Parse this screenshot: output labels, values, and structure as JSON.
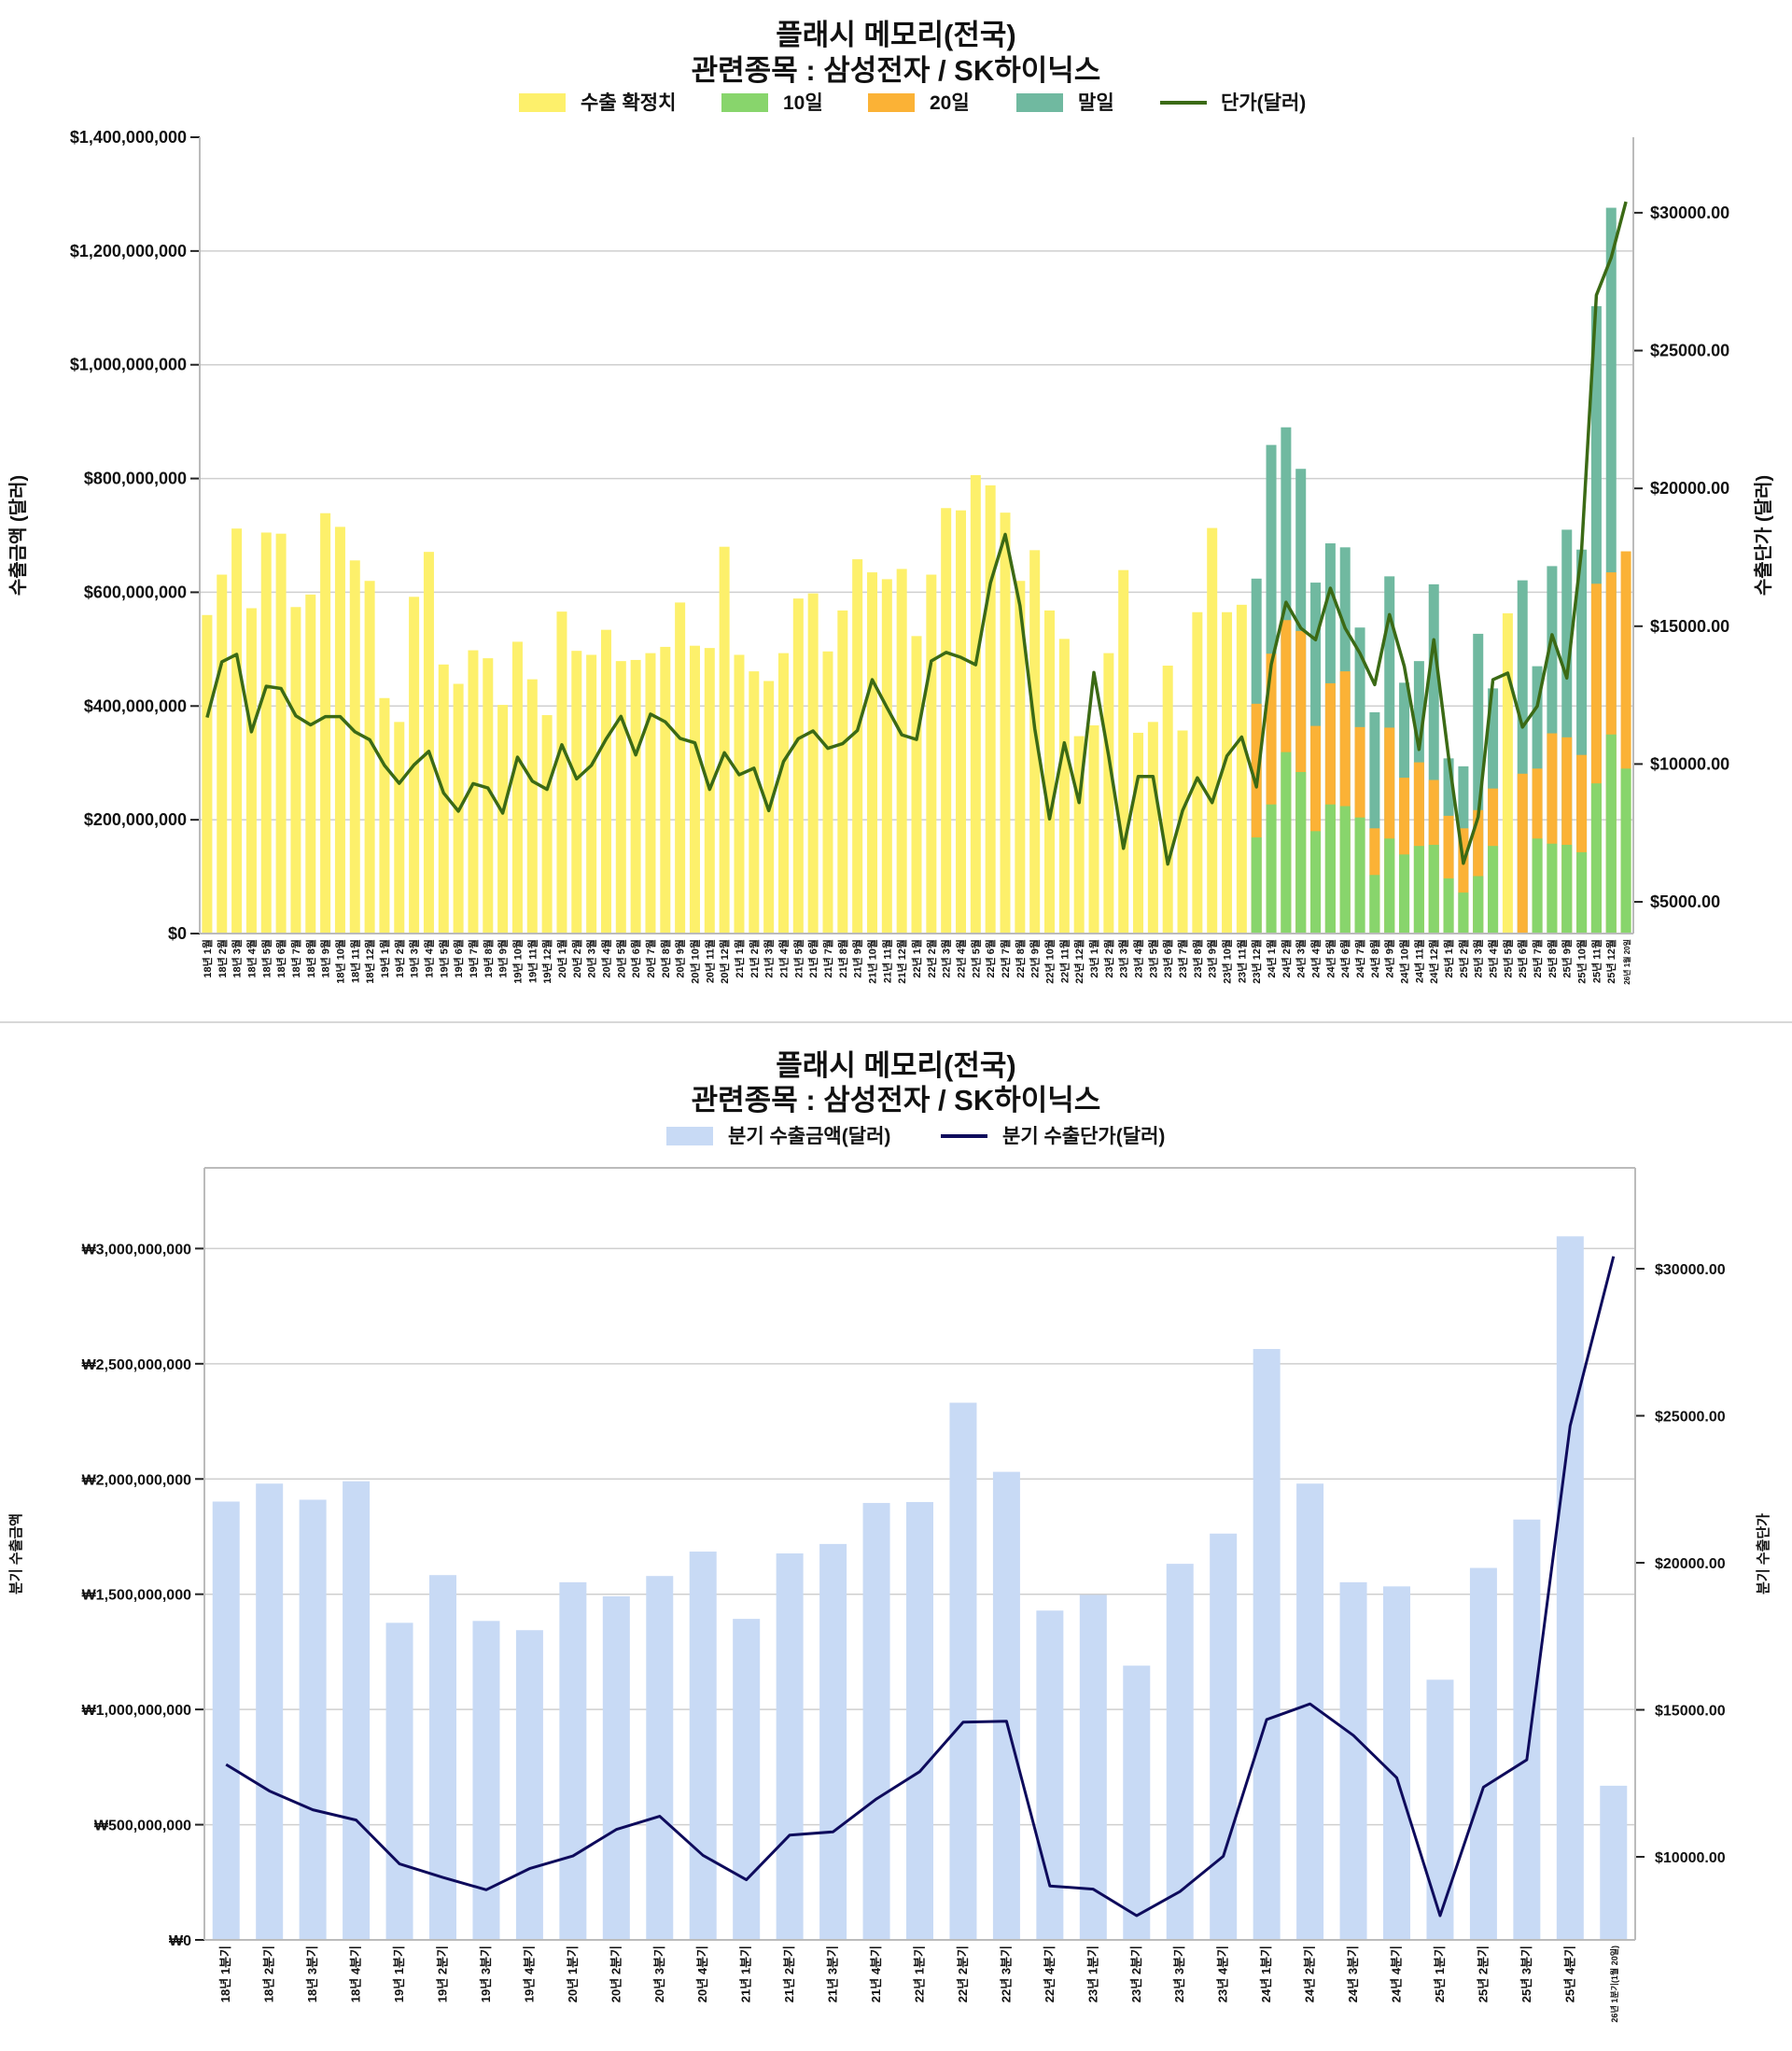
{
  "chart_data": [
    {
      "type": "bar",
      "title": "플래시 메모리(전국)",
      "subtitle": "관련종목 : 삼성전자 / SK하이닉스",
      "ylabel": "수출금액 (달러)",
      "y2label": "수출단가 (달러)",
      "values_unit_multiplier": 1000000,
      "ylim": [
        0,
        1400000000
      ],
      "y2lim": [
        3850,
        32740
      ],
      "yticks": [
        "$0",
        "$200,000,000",
        "$400,000,000",
        "$600,000,000",
        "$800,000,000",
        "$1,000,000,000",
        "$1,200,000,000",
        "$1,400,000,000"
      ],
      "ytick_values": [
        0,
        200000000,
        400000000,
        600000000,
        800000000,
        1000000000,
        1200000000,
        1400000000
      ],
      "y2ticks": [
        "$5000.00",
        "$10000.00",
        "$15000.00",
        "$20000.00",
        "$25000.00",
        "$30000.00"
      ],
      "y2tick_values": [
        5000,
        10000,
        15000,
        20000,
        25000,
        30000
      ],
      "legend": [
        "수출 확정치",
        "10일",
        "20일",
        "말일",
        "단가(달러)"
      ],
      "legend_placement": "top-center",
      "grid": true,
      "colors": {
        "confirmed": "#fdf06b",
        "d10": "#88d56c",
        "d20": "#fbb236",
        "end": "#70b9a0",
        "price": "#3b6a15"
      },
      "categories": [
        "18년 1월",
        "18년 2월",
        "18년 3월",
        "18년 4월",
        "18년 5월",
        "18년 6월",
        "18년 7월",
        "18년 8월",
        "18년 9월",
        "18년 10월",
        "18년 11월",
        "18년 12월",
        "19년 1월",
        "19년 2월",
        "19년 3월",
        "19년 4월",
        "19년 5월",
        "19년 6월",
        "19년 7월",
        "19년 8월",
        "19년 9월",
        "19년 10월",
        "19년 11월",
        "19년 12월",
        "20년 1월",
        "20년 2월",
        "20년 3월",
        "20년 4월",
        "20년 5월",
        "20년 6월",
        "20년 7월",
        "20년 8월",
        "20년 9월",
        "20년 10월",
        "20년 11월",
        "20년 12월",
        "21년 1월",
        "21년 2월",
        "21년 3월",
        "21년 4월",
        "21년 5월",
        "21년 6월",
        "21년 7월",
        "21년 8월",
        "21년 9월",
        "21년 10월",
        "21년 11월",
        "21년 12월",
        "22년 1월",
        "22년 2월",
        "22년 3월",
        "22년 4월",
        "22년 5월",
        "22년 6월",
        "22년 7월",
        "22년 8월",
        "22년 9월",
        "22년 10월",
        "22년 11월",
        "22년 12월",
        "23년 1월",
        "23년 2월",
        "23년 3월",
        "23년 4월",
        "23년 5월",
        "23년 6월",
        "23년 7월",
        "23년 8월",
        "23년 9월",
        "23년 10월",
        "23년 11월",
        "23년 12월",
        "24년 1월",
        "24년 2월",
        "24년 3월",
        "24년 4월",
        "24년 5월",
        "24년 6월",
        "24년 7월",
        "24년 8월",
        "24년 9월",
        "24년 10월",
        "24년 11월",
        "24년 12월",
        "25년 1월",
        "25년 2월",
        "25년 3월",
        "25년 4월",
        "25년 5월",
        "25년 6월",
        "25년 7월",
        "25년 8월",
        "25년 9월",
        "25년 10월",
        "25년 11월",
        "25년 12월",
        "26년 1월 20일"
      ],
      "series": [
        {
          "name": "수출 확정치",
          "kind": "bar",
          "values": [
            560,
            631,
            712,
            572,
            705,
            703,
            574,
            596,
            739,
            715,
            656,
            620,
            414,
            372,
            592,
            671,
            473,
            439,
            498,
            484,
            402,
            513,
            447,
            384,
            566,
            497,
            490,
            534,
            479,
            481,
            493,
            504,
            582,
            506,
            502,
            680,
            490,
            461,
            444,
            493,
            589,
            598,
            496,
            568,
            658,
            635,
            623,
            641,
            523,
            631,
            748,
            744,
            806,
            788,
            740,
            620,
            674,
            568,
            518,
            347,
            366,
            493,
            639,
            353,
            372,
            471,
            357,
            565,
            713,
            565,
            578,
            null,
            null,
            null,
            null,
            null,
            null,
            null,
            null,
            null,
            null,
            null,
            null,
            null,
            null,
            null,
            null,
            null,
            563,
            null,
            null,
            null,
            null,
            null,
            null,
            null,
            null
          ]
        },
        {
          "name": "말일",
          "kind": "bar",
          "values": [
            null,
            null,
            null,
            null,
            null,
            null,
            null,
            null,
            null,
            null,
            null,
            null,
            null,
            null,
            null,
            null,
            null,
            null,
            null,
            null,
            null,
            null,
            null,
            null,
            null,
            null,
            null,
            null,
            null,
            null,
            null,
            null,
            null,
            null,
            null,
            null,
            null,
            null,
            null,
            null,
            null,
            null,
            null,
            null,
            null,
            null,
            null,
            null,
            null,
            null,
            null,
            null,
            null,
            null,
            null,
            null,
            null,
            null,
            null,
            null,
            null,
            null,
            null,
            null,
            null,
            null,
            null,
            null,
            null,
            null,
            null,
            624,
            859,
            890,
            817,
            617,
            686,
            679,
            538,
            389,
            628,
            441,
            479,
            614,
            308,
            294,
            527,
            431,
            null,
            621,
            470,
            646,
            710,
            675,
            1103,
            1276,
            null
          ]
        },
        {
          "name": "20일",
          "kind": "bar",
          "values": [
            null,
            null,
            null,
            null,
            null,
            null,
            null,
            null,
            null,
            null,
            null,
            null,
            null,
            null,
            null,
            null,
            null,
            null,
            null,
            null,
            null,
            null,
            null,
            null,
            null,
            null,
            null,
            null,
            null,
            null,
            null,
            null,
            null,
            null,
            null,
            null,
            null,
            null,
            null,
            null,
            null,
            null,
            null,
            null,
            null,
            null,
            null,
            null,
            null,
            null,
            null,
            null,
            null,
            null,
            null,
            null,
            null,
            null,
            null,
            null,
            null,
            null,
            null,
            null,
            null,
            null,
            null,
            null,
            null,
            null,
            null,
            404,
            492,
            551,
            532,
            365,
            440,
            461,
            363,
            185,
            362,
            274,
            301,
            270,
            207,
            185,
            217,
            255,
            null,
            281,
            290,
            352,
            345,
            314,
            615,
            635,
            672
          ]
        },
        {
          "name": "10일",
          "kind": "bar",
          "values": [
            null,
            null,
            null,
            null,
            null,
            null,
            null,
            null,
            null,
            null,
            null,
            null,
            null,
            null,
            null,
            null,
            null,
            null,
            null,
            null,
            null,
            null,
            null,
            null,
            null,
            null,
            null,
            null,
            null,
            null,
            null,
            null,
            null,
            null,
            null,
            null,
            null,
            null,
            null,
            null,
            null,
            null,
            null,
            null,
            null,
            null,
            null,
            null,
            null,
            null,
            null,
            null,
            null,
            null,
            null,
            null,
            null,
            null,
            null,
            null,
            null,
            null,
            null,
            null,
            null,
            null,
            null,
            null,
            null,
            null,
            null,
            169,
            227,
            319,
            284,
            180,
            227,
            224,
            204,
            103,
            167,
            139,
            154,
            156,
            97,
            72,
            101,
            154,
            null,
            null,
            167,
            158,
            156,
            143,
            264,
            350,
            290
          ]
        },
        {
          "name": "단가(달러)",
          "kind": "line",
          "axis": "right",
          "values": [
            11690,
            13710,
            13980,
            11170,
            12820,
            12740,
            11750,
            11420,
            11720,
            11720,
            11170,
            10880,
            9950,
            9300,
            9970,
            10460,
            8950,
            8290,
            9290,
            9130,
            8220,
            10250,
            9380,
            9080,
            10700,
            9460,
            9950,
            10910,
            11730,
            10330,
            11810,
            11530,
            10930,
            10770,
            9080,
            10410,
            9610,
            9850,
            8310,
            10090,
            10920,
            11200,
            10570,
            10740,
            11220,
            13060,
            12050,
            11060,
            10890,
            13740,
            14050,
            13870,
            13600,
            16570,
            18330,
            15740,
            11280,
            8010,
            10770,
            8600,
            13320,
            10290,
            6940,
            9550,
            9550,
            6370,
            8310,
            9500,
            8600,
            10290,
            10980,
            9170,
            13610,
            15870,
            14930,
            14510,
            16380,
            14930,
            14020,
            12880,
            15420,
            13550,
            10530,
            14510,
            10250,
            6400,
            8080,
            13060,
            13300,
            11340,
            12100,
            14690,
            13120,
            17770,
            27010,
            28370,
            30400
          ]
        }
      ]
    },
    {
      "type": "bar",
      "title": "플래시 메모리(전국)",
      "subtitle": "관련종목 : 삼성전자 / SK하이닉스",
      "ylabel": "분기 수출금액",
      "y2label": "분기 수출단가",
      "values_unit_multiplier": 1000000,
      "ylim": [
        0,
        3350000000
      ],
      "y2lim": [
        7175,
        33430
      ],
      "yticks": [
        "₩0",
        "₩500,000,000",
        "₩1,000,000,000",
        "₩1,500,000,000",
        "₩2,000,000,000",
        "₩2,500,000,000",
        "₩3,000,000,000"
      ],
      "ytick_values": [
        0,
        500000000,
        1000000000,
        1500000000,
        2000000000,
        2500000000,
        3000000000
      ],
      "y2ticks": [
        "$10000.00",
        "$15000.00",
        "$20000.00",
        "$25000.00",
        "$30000.00"
      ],
      "y2tick_values": [
        10000,
        15000,
        20000,
        25000,
        30000
      ],
      "legend": [
        "분기 수출금액(달러)",
        "분기 수출단가(달러)"
      ],
      "legend_placement": "top-center",
      "grid": true,
      "colors": {
        "bar": "#c8daf5",
        "line": "#0e0b5c"
      },
      "categories": [
        "18년 1분기",
        "18년 2분기",
        "18년 3분기",
        "18년 4분기",
        "19년 1분기",
        "19년 2분기",
        "19년 3분기",
        "19년 4분기",
        "20년 1분기",
        "20년 2분기",
        "20년 3분기",
        "20년 4분기",
        "21년 1분기",
        "21년 2분기",
        "21년 3분기",
        "21년 4분기",
        "22년 1분기",
        "22년 2분기",
        "22년 3분기",
        "22년 4분기",
        "23년 1분기",
        "23년 2분기",
        "23년 3분기",
        "23년 4분기",
        "24년 1분기",
        "24년 2분기",
        "24년 3분기",
        "24년 4분기",
        "25년 1분기",
        "25년 2분기",
        "25년 3분기",
        "25년 4분기",
        "26년 1분기(1월 20일)"
      ],
      "series": [
        {
          "name": "분기 수출금액(달러)",
          "kind": "bar",
          "values": [
            1902,
            1980,
            1910,
            1990,
            1376,
            1583,
            1384,
            1344,
            1552,
            1491,
            1579,
            1685,
            1393,
            1677,
            1718,
            1896,
            1900,
            2331,
            2031,
            1429,
            1497,
            1190,
            1632,
            1763,
            2564,
            1980,
            1552,
            1534,
            1129,
            1614,
            1824,
            3053,
            669
          ]
        },
        {
          "name": "분기 수출단가(달러)",
          "kind": "line",
          "axis": "right",
          "values": [
            13140,
            12240,
            11600,
            11250,
            9760,
            9300,
            8880,
            9600,
            10030,
            10930,
            11380,
            10050,
            9220,
            10740,
            10850,
            11970,
            12900,
            14580,
            14610,
            9010,
            8900,
            8000,
            8820,
            10020,
            14670,
            15200,
            14130,
            12690,
            8000,
            12370,
            13300,
            24660,
            30420
          ]
        }
      ]
    }
  ]
}
